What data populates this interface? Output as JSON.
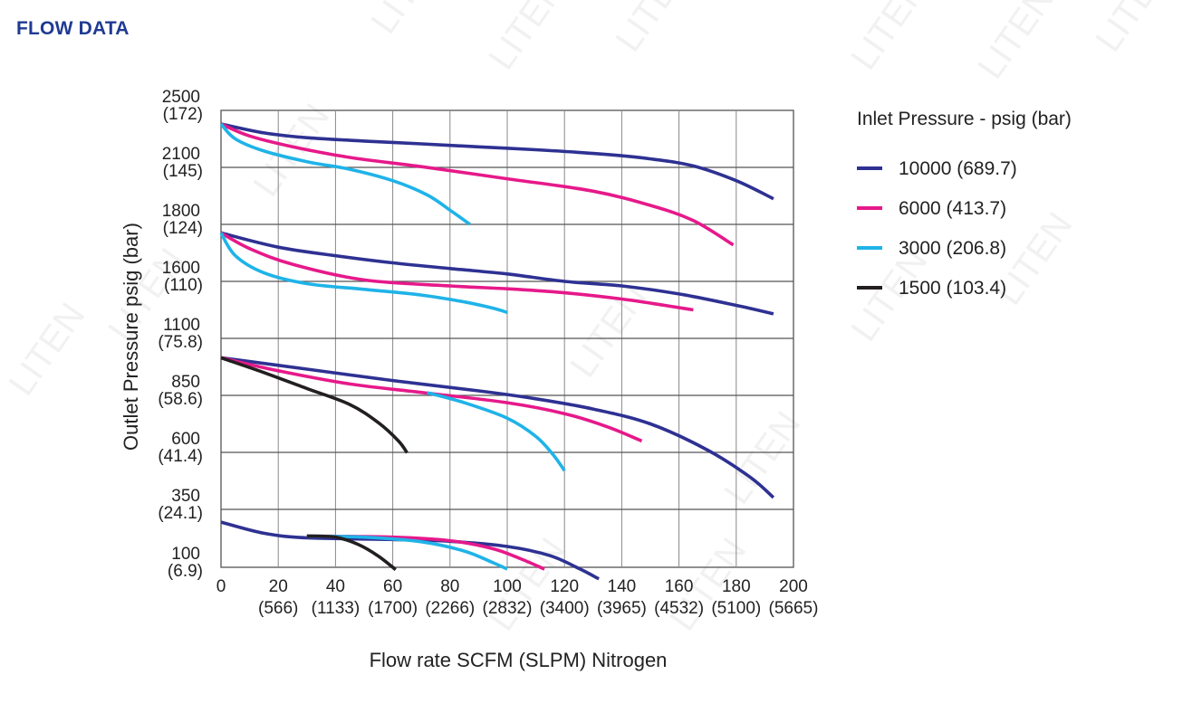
{
  "page_title": "FLOW DATA",
  "watermark_text": "LITEN",
  "chart_data": {
    "type": "line",
    "xlabel": "Flow rate SCFM (SLPM) Nitrogen",
    "ylabel": "Outlet Pressure psig (bar)",
    "xlim": [
      0,
      200
    ],
    "x_ticks": [
      {
        "value": 0,
        "label": "0",
        "sublabel": ""
      },
      {
        "value": 20,
        "label": "20",
        "sublabel": "(566)"
      },
      {
        "value": 40,
        "label": "40",
        "sublabel": "(1133)"
      },
      {
        "value": 60,
        "label": "60",
        "sublabel": "(1700)"
      },
      {
        "value": 80,
        "label": "80",
        "sublabel": "(2266)"
      },
      {
        "value": 100,
        "label": "100",
        "sublabel": "(2832)"
      },
      {
        "value": 120,
        "label": "120",
        "sublabel": "(3400)"
      },
      {
        "value": 140,
        "label": "140",
        "sublabel": "(3965)"
      },
      {
        "value": 160,
        "label": "160",
        "sublabel": "(4532)"
      },
      {
        "value": 180,
        "label": "180",
        "sublabel": "(5100)"
      },
      {
        "value": 200,
        "label": "200",
        "sublabel": "(5665)"
      }
    ],
    "y_ticks": [
      {
        "label": "2500",
        "sublabel": "(172)"
      },
      {
        "label": "2100",
        "sublabel": "(145)"
      },
      {
        "label": "1800",
        "sublabel": "(124)"
      },
      {
        "label": "1600",
        "sublabel": "(110)"
      },
      {
        "label": "1100",
        "sublabel": "(75.8)"
      },
      {
        "label": "850",
        "sublabel": "(58.6)"
      },
      {
        "label": "600",
        "sublabel": "(41.4)"
      },
      {
        "label": "350",
        "sublabel": "(24.1)"
      },
      {
        "label": "100",
        "sublabel": "(6.9)"
      }
    ],
    "grid": true,
    "legend_title": "Inlet Pressure - psig (bar)",
    "legend_position": "right",
    "series": [
      {
        "name": "10000 (689.7)",
        "color": "#2e3192",
        "curves": [
          [
            [
              0,
              2405
            ],
            [
              15,
              2342
            ],
            [
              30,
              2308
            ],
            [
              50,
              2285
            ],
            [
              70,
              2265
            ],
            [
              90,
              2244
            ],
            [
              110,
              2224
            ],
            [
              130,
              2198
            ],
            [
              150,
              2160
            ],
            [
              165,
              2110
            ],
            [
              180,
              2030
            ],
            [
              193,
              1935
            ]
          ],
          [
            [
              0,
              1770
            ],
            [
              20,
              1720
            ],
            [
              40,
              1690
            ],
            [
              60,
              1665
            ],
            [
              80,
              1645
            ],
            [
              100,
              1626
            ],
            [
              120,
              1600
            ],
            [
              140,
              1560
            ],
            [
              160,
              1490
            ],
            [
              180,
              1390
            ],
            [
              193,
              1315
            ]
          ],
          [
            [
              0,
              1015
            ],
            [
              30,
              965
            ],
            [
              60,
              915
            ],
            [
              90,
              870
            ],
            [
              110,
              835
            ],
            [
              130,
              790
            ],
            [
              150,
              725
            ],
            [
              170,
              610
            ],
            [
              185,
              490
            ],
            [
              193,
              402
            ]
          ],
          [
            [
              0,
              295
            ],
            [
              15,
              247
            ],
            [
              30,
              227
            ],
            [
              60,
              220
            ],
            [
              80,
              212
            ],
            [
              100,
              190
            ],
            [
              115,
              150
            ],
            [
              125,
              95
            ],
            [
              132,
              50
            ]
          ]
        ]
      },
      {
        "name": "6000 (413.7)",
        "color": "#e6198a",
        "curves": [
          [
            [
              0,
              2405
            ],
            [
              10,
              2320
            ],
            [
              25,
              2245
            ],
            [
              45,
              2170
            ],
            [
              70,
              2105
            ],
            [
              100,
              2040
            ],
            [
              130,
              1975
            ],
            [
              150,
              1900
            ],
            [
              165,
              1820
            ],
            [
              179,
              1728
            ]
          ],
          [
            [
              0,
              1770
            ],
            [
              10,
              1715
            ],
            [
              25,
              1660
            ],
            [
              50,
              1605
            ],
            [
              80,
              1560
            ],
            [
              100,
              1535
            ],
            [
              120,
              1500
            ],
            [
              140,
              1445
            ],
            [
              155,
              1390
            ],
            [
              165,
              1350
            ]
          ],
          [
            [
              0,
              1015
            ],
            [
              20,
              958
            ],
            [
              45,
              900
            ],
            [
              72,
              860
            ],
            [
              100,
              818
            ],
            [
              120,
              770
            ],
            [
              135,
              712
            ],
            [
              147,
              650
            ]
          ],
          [
            [
              30,
              235
            ],
            [
              60,
              230
            ],
            [
              80,
              215
            ],
            [
              95,
              180
            ],
            [
              105,
              135
            ],
            [
              113,
              92
            ]
          ]
        ]
      },
      {
        "name": "3000 (206.8)",
        "color": "#1fb3e8",
        "curves": [
          [
            [
              0,
              2405
            ],
            [
              5,
              2300
            ],
            [
              15,
              2215
            ],
            [
              30,
              2140
            ],
            [
              45,
              2090
            ],
            [
              60,
              2030
            ],
            [
              72,
              1955
            ],
            [
              80,
              1875
            ],
            [
              87,
              1800
            ]
          ],
          [
            [
              0,
              1770
            ],
            [
              5,
              1690
            ],
            [
              15,
              1630
            ],
            [
              30,
              1580
            ],
            [
              50,
              1530
            ],
            [
              70,
              1480
            ],
            [
              85,
              1420
            ],
            [
              95,
              1365
            ],
            [
              100,
              1328
            ]
          ],
          [
            [
              72,
              862
            ],
            [
              85,
              818
            ],
            [
              100,
              750
            ],
            [
              110,
              670
            ],
            [
              116,
              590
            ],
            [
              120,
              520
            ]
          ],
          [
            [
              30,
              235
            ],
            [
              50,
              230
            ],
            [
              70,
              210
            ],
            [
              85,
              170
            ],
            [
              95,
              120
            ],
            [
              100,
              92
            ]
          ]
        ]
      },
      {
        "name": "1500 (103.4)",
        "color": "#231f20",
        "curves": [
          [
            [
              0,
              1015
            ],
            [
              15,
              950
            ],
            [
              30,
              880
            ],
            [
              45,
              810
            ],
            [
              55,
              730
            ],
            [
              62,
              650
            ],
            [
              65,
              598
            ]
          ],
          [
            [
              30,
              235
            ],
            [
              40,
              230
            ],
            [
              48,
              198
            ],
            [
              55,
              148
            ],
            [
              61,
              90
            ]
          ]
        ]
      }
    ]
  }
}
